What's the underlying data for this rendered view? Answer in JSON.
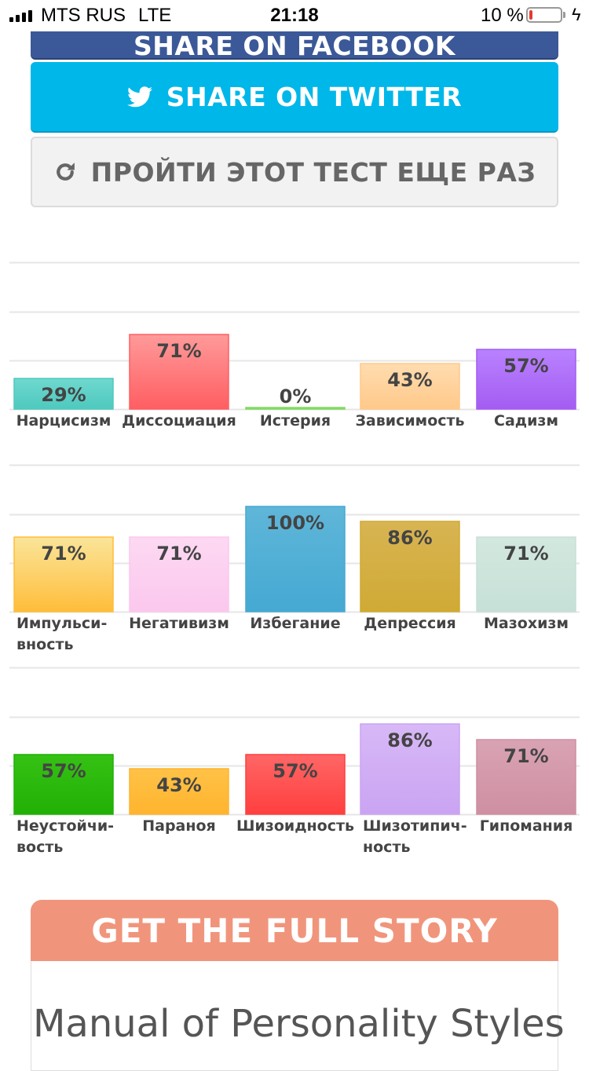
{
  "status_bar": {
    "carrier": "MTS RUS",
    "network": "LTE",
    "time": "21:18",
    "battery_percent": "10 %",
    "battery_level": 0.1,
    "battery_color": "#e23b30"
  },
  "share": {
    "facebook_label": "SHARE ON FACEBOOK",
    "facebook_icon": "facebook-icon",
    "twitter_label": "SHARE ON TWITTER",
    "twitter_icon": "twitter-bird-icon",
    "retake_label": "ПРОЙТИ ЭТОТ ТЕСТ ЕЩЕ РАЗ",
    "retake_icon": "refresh-icon",
    "colors": {
      "facebook": "#3b5998",
      "twitter": "#00b7e9",
      "retake_bg": "#f2f2f2"
    }
  },
  "chart_data": [
    {
      "type": "bar",
      "categories": [
        "Нарцисизм",
        "Диссоциация",
        "Истерия",
        "Зависимость",
        "Садизм"
      ],
      "category_lines": [
        [
          "Нарцисизм"
        ],
        [
          "Диссоциация"
        ],
        [
          "Истерия"
        ],
        [
          "Зависимость"
        ],
        [
          "Садизм"
        ]
      ],
      "values": [
        29,
        71,
        0,
        43,
        57
      ],
      "value_labels": [
        "29%",
        "71%",
        "0%",
        "43%",
        "57%"
      ],
      "colors": [
        [
          "#6fd8cf",
          "#4ec9be"
        ],
        [
          "#ff9a9a",
          "#ff5e62"
        ],
        [
          "#a8e890",
          "#7fd85f"
        ],
        [
          "#ffdcb0",
          "#ffc98a"
        ],
        [
          "#b982ff",
          "#a45cf2"
        ]
      ],
      "ylim": [
        0,
        100
      ],
      "grid": true
    },
    {
      "type": "bar",
      "categories": [
        "Импульсивность",
        "Негативизм",
        "Избегание",
        "Депрессия",
        "Мазохизм"
      ],
      "category_lines": [
        [
          "Импульси-",
          "вность"
        ],
        [
          "Негативизм"
        ],
        [
          "Избегание"
        ],
        [
          "Депрессия"
        ],
        [
          "Мазохизм"
        ]
      ],
      "values": [
        71,
        71,
        100,
        86,
        71
      ],
      "value_labels": [
        "71%",
        "71%",
        "100%",
        "86%",
        "71%"
      ],
      "colors": [
        [
          "#fae59a",
          "#ffbd3a"
        ],
        [
          "#fdd9f2",
          "#fbc7ee"
        ],
        [
          "#5fb6d9",
          "#45a9d2"
        ],
        [
          "#d8b453",
          "#d0aa34"
        ],
        [
          "#d2e8df",
          "#c7e0d7"
        ]
      ],
      "ylim": [
        0,
        100
      ],
      "grid": true
    },
    {
      "type": "bar",
      "categories": [
        "Неустойчивость",
        "Параноя",
        "Шизоидность",
        "Шизотипичность",
        "Гипомания"
      ],
      "category_lines": [
        [
          "Неустойчи-",
          "вость"
        ],
        [
          "Параноя"
        ],
        [
          "Шизоидность"
        ],
        [
          "Шизотипич-",
          "ность"
        ],
        [
          "Гипомания"
        ]
      ],
      "values": [
        57,
        43,
        57,
        86,
        71
      ],
      "value_labels": [
        "57%",
        "43%",
        "57%",
        "86%",
        "71%"
      ],
      "colors": [
        [
          "#35c214",
          "#22b006"
        ],
        [
          "#ffc247",
          "#ffb42e"
        ],
        [
          "#ff6666",
          "#ff3f3f"
        ],
        [
          "#d8b8f7",
          "#caa4f2"
        ],
        [
          "#d9a3b3",
          "#ce8fa2"
        ]
      ],
      "ylim": [
        0,
        100
      ],
      "grid": true
    }
  ],
  "promo": {
    "header": "GET THE FULL STORY",
    "header_color": "#f0957c",
    "title": "Manual of Personality Styles"
  }
}
